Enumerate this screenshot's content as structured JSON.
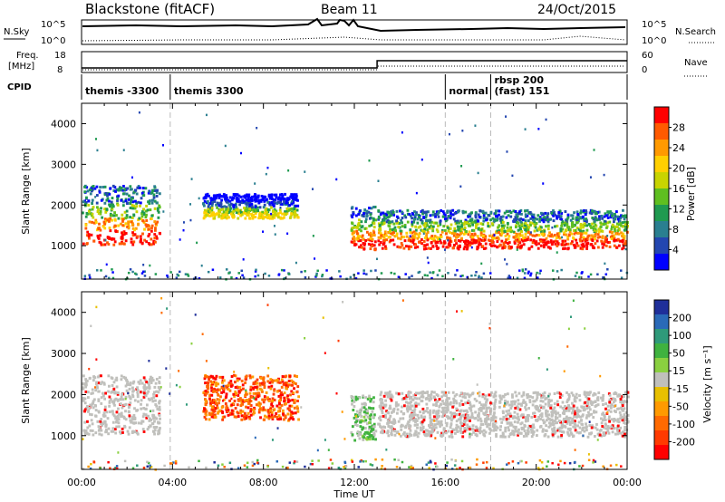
{
  "header": {
    "station": "Blackstone (fitACF)",
    "beam": "Beam 11",
    "date": "24/Oct/2015"
  },
  "top_panels": {
    "nsky_label": "N.Sky",
    "nsky_ticks": [
      "10^5",
      "10^0"
    ],
    "nsearch_label": "N.Search",
    "nsearch_ticks": [
      "10^5",
      "10^0"
    ],
    "freq_label_1": "Freq.",
    "freq_label_2": "[MHz]",
    "freq_ticks": [
      "18",
      "8"
    ],
    "nave_label": "Nave",
    "nave_ticks": [
      "60",
      "0"
    ],
    "cpid_label": "CPID",
    "cpid_segments": [
      {
        "label": "themis -3300",
        "start_hour": 0,
        "end_hour": 3.9
      },
      {
        "label": "themis 3300",
        "start_hour": 3.9,
        "end_hour": 16.0
      },
      {
        "label": "normal",
        "start_hour": 16.0,
        "end_hour": 18.0
      },
      {
        "label": "rbsp 200",
        "label2": "(fast) 151",
        "start_hour": 18.0,
        "end_hour": 24.0
      }
    ]
  },
  "panels": {
    "power": {
      "ylabel": "Slant Range [km]",
      "colorbar_label": "Power [dB]",
      "colorbar_ticks": [
        "28",
        "24",
        "20",
        "16",
        "12",
        "8",
        "4"
      ],
      "colorbar_colors": [
        "#ff0000",
        "#ff5a00",
        "#ff9a00",
        "#ffd000",
        "#c8d400",
        "#5fbf20",
        "#1f9a50",
        "#2a7f90",
        "#2346b0",
        "#0000ff"
      ]
    },
    "velocity": {
      "ylabel": "Slant Range [km]",
      "colorbar_label": "Velocity [m s⁻¹]",
      "colorbar_ticks": [
        "200",
        "100",
        "50",
        "15",
        "-15",
        "-50",
        "-100",
        "-200"
      ],
      "colorbar_colors": [
        "#1f2f9a",
        "#2a6ab8",
        "#2f9a7a",
        "#3fb23f",
        "#8ad040",
        "#c0c0bc",
        "#e8c000",
        "#ff9a00",
        "#ff6a00",
        "#ff3a00",
        "#ff0000"
      ]
    }
  },
  "chart_data": {
    "type": "heatmap",
    "title": "Blackstone (fitACF)",
    "xlabel": "Time UT",
    "ylabel": "Slant Range [km]",
    "x_range_hours": [
      0,
      24
    ],
    "y_range_km": [
      180,
      4500
    ],
    "x_ticks": [
      "00:00",
      "04:00",
      "08:00",
      "12:00",
      "16:00",
      "20:00",
      "00:00"
    ],
    "y_ticks": [
      "1000",
      "2000",
      "3000",
      "4000"
    ],
    "cpid_boundaries_hours": [
      3.9,
      16.0,
      18.0
    ],
    "frequency_mhz": {
      "before_hour": 13.0,
      "before": 10.5,
      "after": 14.5
    },
    "series": [
      {
        "name": "Power",
        "regions": [
          {
            "t_start": 0.0,
            "t_end": 3.4,
            "r_start": 1050,
            "r_end": 2500,
            "value_db": 20
          },
          {
            "t_start": 5.3,
            "t_end": 9.5,
            "r_start": 1700,
            "r_end": 2300,
            "value_db": 14
          },
          {
            "t_start": 11.8,
            "t_end": 12.9,
            "r_start": 900,
            "r_end": 2000,
            "value_db": 22
          },
          {
            "t_start": 13.0,
            "t_end": 24.0,
            "r_start": 950,
            "r_end": 1900,
            "value_db": 24
          }
        ]
      },
      {
        "name": "Velocity",
        "regions": [
          {
            "t_start": 0.0,
            "t_end": 3.4,
            "r_start": 1050,
            "r_end": 2500,
            "value_ms": 0
          },
          {
            "t_start": 5.3,
            "t_end": 9.5,
            "r_start": 1400,
            "r_end": 2500,
            "value_ms": -150
          },
          {
            "t_start": 11.8,
            "t_end": 12.9,
            "r_start": 900,
            "r_end": 2000,
            "value_ms": 40
          },
          {
            "t_start": 13.0,
            "t_end": 24.0,
            "r_start": 1000,
            "r_end": 2100,
            "value_ms": 0
          }
        ]
      }
    ]
  }
}
